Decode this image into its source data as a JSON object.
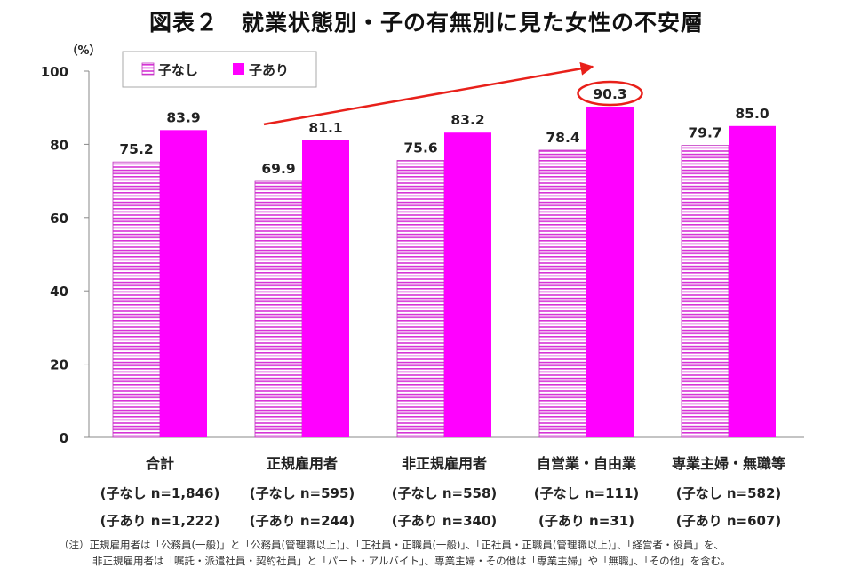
{
  "title": "図表２　就業状態別・子の有無別に見た女性の不安層",
  "unit": "（%）",
  "chart_data": {
    "type": "bar",
    "categories": [
      "合計",
      "正規雇用者",
      "非正規雇用者",
      "自営業・自由業",
      "専業主婦・無職等"
    ],
    "category_sublabels": [
      [
        "(子なし n=1,846)",
        "(子あり n=1,222)"
      ],
      [
        "(子なし n=595)",
        "(子あり n=244)"
      ],
      [
        "(子なし n=558)",
        "(子あり n=340)"
      ],
      [
        "(子なし n=111)",
        "(子あり n=31)"
      ],
      [
        "(子なし n=582)",
        "(子あり n=607)"
      ]
    ],
    "series": [
      {
        "name": "子なし",
        "values": [
          75.2,
          69.9,
          75.6,
          78.4,
          79.7
        ],
        "labels": [
          "75.2",
          "69.9",
          "75.6",
          "78.4",
          "79.7"
        ],
        "color": "#d633d6",
        "pattern": "horizontal-stripes"
      },
      {
        "name": "子あり",
        "values": [
          83.9,
          81.1,
          83.2,
          90.3,
          85.0
        ],
        "labels": [
          "83.9",
          "81.1",
          "83.2",
          "90.3",
          "85.0"
        ],
        "color": "#ff00ff",
        "pattern": "solid"
      }
    ],
    "ylim": [
      0,
      100
    ],
    "yticks": [
      0,
      20,
      40,
      60,
      80,
      100
    ],
    "grid": false,
    "legend_position": "top-left",
    "highlight": {
      "series": 1,
      "category": 3,
      "color": "#e8201a"
    },
    "trend_arrow": {
      "color": "#e8201a",
      "from_category": 1,
      "to_category": 3
    }
  },
  "notes": [
    "（注）正規雇用者は「公務員(一般)」と「公務員(管理職以上)」、「正社員・正職員(一般)」、「正社員・正職員(管理職以上)」、「経営者・役員」を、",
    "非正規雇用者は「嘱託・派遣社員・契約社員」と「パート・アルバイト」、専業主婦・その他は「専業主婦」や「無職」、「その他」を含む。"
  ]
}
